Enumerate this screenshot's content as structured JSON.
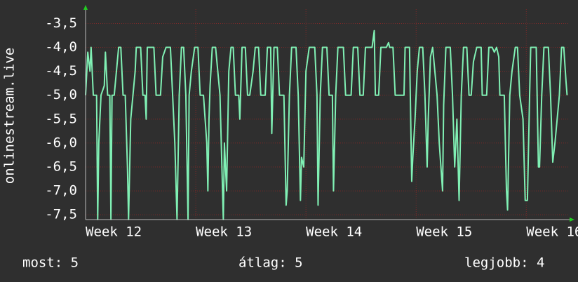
{
  "chart_data": {
    "type": "line",
    "ylabel": "onlinestream.live",
    "xlim": [
      12,
      16.38
    ],
    "xticks": [
      {
        "value": 12,
        "label": "Week 12"
      },
      {
        "value": 13,
        "label": "Week 13"
      },
      {
        "value": 14,
        "label": "Week 14"
      },
      {
        "value": 15,
        "label": "Week 15"
      },
      {
        "value": 16,
        "label": "Week 16"
      }
    ],
    "ylim": [
      -7.6,
      -3.2
    ],
    "yticks": [
      {
        "value": -3.5,
        "label": "-3,5"
      },
      {
        "value": -4.0,
        "label": "-4,0"
      },
      {
        "value": -4.5,
        "label": "-4,5"
      },
      {
        "value": -5.0,
        "label": "-5,0"
      },
      {
        "value": -5.5,
        "label": "-5,5"
      },
      {
        "value": -6.0,
        "label": "-6,0"
      },
      {
        "value": -6.5,
        "label": "-6,5"
      },
      {
        "value": -7.0,
        "label": "-7,0"
      },
      {
        "value": -7.5,
        "label": "-7,5"
      }
    ],
    "grid": true,
    "x": [
      12.0,
      12.02,
      12.04,
      12.05,
      12.07,
      12.1,
      12.11,
      12.12,
      12.14,
      12.17,
      12.18,
      12.2,
      12.22,
      12.23,
      12.24,
      12.26,
      12.28,
      12.3,
      12.32,
      12.33,
      12.34,
      12.36,
      12.38,
      12.39,
      12.41,
      12.43,
      12.45,
      12.46,
      12.5,
      12.52,
      12.54,
      12.55,
      12.56,
      12.62,
      12.64,
      12.68,
      12.7,
      12.73,
      12.77,
      12.79,
      12.81,
      12.83,
      12.85,
      12.87,
      12.89,
      12.91,
      12.93,
      12.94,
      12.96,
      12.99,
      13.02,
      13.04,
      13.07,
      13.1,
      13.11,
      13.12,
      13.13,
      13.15,
      13.18,
      13.2,
      13.22,
      13.25,
      13.26,
      13.28,
      13.3,
      13.32,
      13.34,
      13.36,
      13.39,
      13.4,
      13.42,
      13.45,
      13.47,
      13.49,
      13.52,
      13.54,
      13.57,
      13.59,
      13.63,
      13.65,
      13.68,
      13.69,
      13.71,
      13.74,
      13.76,
      13.8,
      13.82,
      13.83,
      13.85,
      13.87,
      13.91,
      13.93,
      13.95,
      13.96,
      13.98,
      14.0,
      14.03,
      14.08,
      14.1,
      14.11,
      14.13,
      14.15,
      14.19,
      14.21,
      14.24,
      14.25,
      14.27,
      14.29,
      14.34,
      14.36,
      14.41,
      14.43,
      14.47,
      14.49,
      14.52,
      14.54,
      14.6,
      14.62,
      14.63,
      14.66,
      14.68,
      14.73,
      14.75,
      14.76,
      14.79,
      14.81,
      14.89,
      14.9,
      14.94,
      14.96,
      14.97,
      14.99,
      15.01,
      15.03,
      15.06,
      15.08,
      15.1,
      15.11,
      15.13,
      15.15,
      15.17,
      15.19,
      15.21,
      15.24,
      15.25,
      15.27,
      15.31,
      15.33,
      15.35,
      15.37,
      15.39,
      15.41,
      15.43,
      15.46,
      15.48,
      15.5,
      15.52,
      15.55,
      15.59,
      15.6,
      15.64,
      15.66,
      15.69,
      15.71,
      15.73,
      15.75,
      15.76,
      15.8,
      15.82,
      15.83,
      15.85,
      15.87,
      15.9,
      15.92,
      15.94,
      15.97,
      15.99,
      16.01,
      16.03,
      16.04,
      16.09,
      16.11,
      16.12,
      16.14,
      16.16,
      16.2,
      16.22,
      16.24,
      16.26,
      16.28,
      16.3,
      16.32,
      16.34,
      16.36,
      16.37
    ],
    "series": [
      {
        "name": "onlinestream.live",
        "color": "#80f0b4",
        "values": [
          -5.0,
          -4.1,
          -4.5,
          -4.0,
          -5.0,
          -5.0,
          -7.6,
          -6.0,
          -5.0,
          -4.8,
          -4.1,
          -5.0,
          -5.0,
          -7.6,
          -5.0,
          -5.0,
          -4.5,
          -4.0,
          -4.0,
          -4.5,
          -5.0,
          -5.0,
          -6.5,
          -7.6,
          -5.5,
          -5.0,
          -4.5,
          -4.0,
          -4.0,
          -5.0,
          -5.0,
          -5.5,
          -4.0,
          -4.0,
          -5.0,
          -5.0,
          -4.2,
          -4.0,
          -4.0,
          -5.0,
          -6.0,
          -7.6,
          -5.0,
          -4.0,
          -4.0,
          -5.0,
          -7.6,
          -5.0,
          -4.5,
          -4.0,
          -4.0,
          -5.0,
          -5.0,
          -6.0,
          -7.0,
          -5.5,
          -4.8,
          -4.0,
          -4.0,
          -4.5,
          -5.0,
          -7.6,
          -6.0,
          -7.0,
          -4.5,
          -4.0,
          -4.0,
          -5.0,
          -5.0,
          -5.5,
          -4.0,
          -4.0,
          -5.0,
          -5.0,
          -4.5,
          -4.0,
          -4.0,
          -5.0,
          -5.0,
          -4.0,
          -4.0,
          -5.8,
          -4.0,
          -4.0,
          -5.0,
          -5.0,
          -7.3,
          -7.0,
          -5.0,
          -4.0,
          -4.0,
          -5.0,
          -7.2,
          -6.3,
          -6.5,
          -4.5,
          -4.0,
          -4.0,
          -5.0,
          -7.3,
          -5.0,
          -4.0,
          -4.0,
          -5.0,
          -5.0,
          -7.0,
          -5.0,
          -4.0,
          -4.0,
          -5.0,
          -5.0,
          -4.0,
          -4.0,
          -5.0,
          -5.0,
          -4.0,
          -4.0,
          -3.65,
          -5.0,
          -5.0,
          -4.0,
          -4.0,
          -3.9,
          -4.0,
          -4.0,
          -5.0,
          -5.0,
          -4.0,
          -4.0,
          -6.8,
          -6.3,
          -5.5,
          -4.5,
          -4.0,
          -4.0,
          -5.0,
          -6.5,
          -5.5,
          -4.2,
          -4.0,
          -4.5,
          -5.0,
          -6.0,
          -7.0,
          -5.2,
          -4.0,
          -4.0,
          -5.0,
          -6.5,
          -5.5,
          -7.2,
          -5.0,
          -4.0,
          -4.0,
          -5.0,
          -5.0,
          -4.3,
          -4.0,
          -4.0,
          -5.0,
          -5.0,
          -4.0,
          -4.0,
          -4.1,
          -4.0,
          -4.2,
          -5.0,
          -5.0,
          -7.0,
          -7.4,
          -5.0,
          -4.5,
          -4.0,
          -4.0,
          -5.0,
          -5.5,
          -7.2,
          -7.2,
          -5.0,
          -4.0,
          -4.0,
          -6.5,
          -6.5,
          -5.0,
          -4.0,
          -4.0,
          -5.0,
          -6.4,
          -6.0,
          -5.5,
          -5.0,
          -4.0,
          -4.0,
          -4.7,
          -5.0
        ]
      }
    ],
    "footer": [
      "most: 5",
      "átlag: 5",
      "legjobb: 4"
    ]
  }
}
